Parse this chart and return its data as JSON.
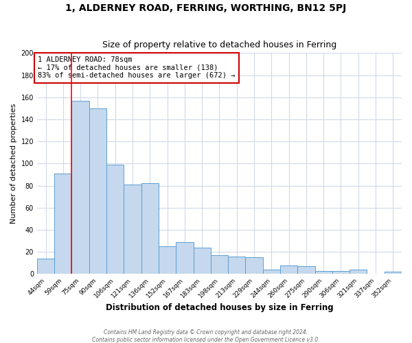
{
  "title": "1, ALDERNEY ROAD, FERRING, WORTHING, BN12 5PJ",
  "subtitle": "Size of property relative to detached houses in Ferring",
  "xlabel": "Distribution of detached houses by size in Ferring",
  "ylabel": "Number of detached properties",
  "bar_labels": [
    "44sqm",
    "59sqm",
    "75sqm",
    "90sqm",
    "106sqm",
    "121sqm",
    "136sqm",
    "152sqm",
    "167sqm",
    "183sqm",
    "198sqm",
    "213sqm",
    "229sqm",
    "244sqm",
    "260sqm",
    "275sqm",
    "290sqm",
    "306sqm",
    "321sqm",
    "337sqm",
    "352sqm"
  ],
  "bar_values": [
    14,
    91,
    157,
    150,
    99,
    81,
    82,
    25,
    29,
    24,
    17,
    16,
    15,
    4,
    8,
    7,
    3,
    3,
    4,
    0,
    2
  ],
  "bar_color": "#c5d8ed",
  "bar_edge_color": "#5a9fd4",
  "red_line_index": 2,
  "property_label": "1 ALDERNEY ROAD: 78sqm",
  "annotation_line1": "← 17% of detached houses are smaller (138)",
  "annotation_line2": "83% of semi-detached houses are larger (672) →",
  "ylim": [
    0,
    200
  ],
  "yticks": [
    0,
    20,
    40,
    60,
    80,
    100,
    120,
    140,
    160,
    180,
    200
  ],
  "footer1": "Contains HM Land Registry data © Crown copyright and database right 2024.",
  "footer2": "Contains public sector information licensed under the Open Government Licence v3.0.",
  "background_color": "#ffffff",
  "plot_background_color": "#ffffff",
  "title_fontsize": 10,
  "subtitle_fontsize": 9,
  "annotation_box_color": "#ffffff",
  "annotation_box_edge": "#cc0000",
  "grid_color": "#d0d8e8"
}
